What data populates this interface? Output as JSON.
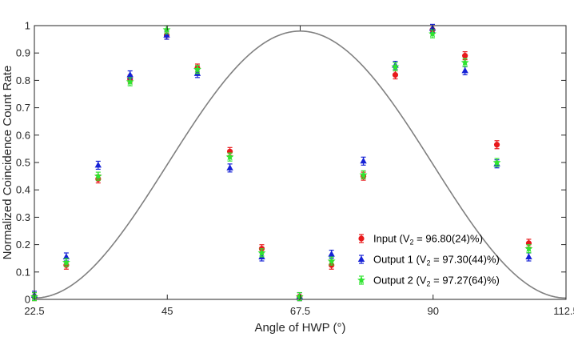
{
  "chart_data": {
    "type": "scatter",
    "xlabel": "Angle of HWP (°)",
    "ylabel": "Normalized Coincidence Count Rate",
    "xlim": [
      22.5,
      112.5
    ],
    "ylim": [
      0,
      1
    ],
    "xticks": [
      "22.5",
      "45",
      "67.5",
      "90",
      "112.5"
    ],
    "yticks": [
      "0",
      "0.1",
      "0.2",
      "0.3",
      "0.4",
      "0.5",
      "0.6",
      "0.7",
      "0.8",
      "0.9",
      "1"
    ],
    "grid": false,
    "legend_position": "right",
    "fit_curve": {
      "color": "#808080",
      "x_min": 22.5,
      "x_max": 112.5
    },
    "x": [
      22.5,
      27.9,
      33.3,
      38.7,
      44.9,
      50.1,
      55.6,
      61.0,
      67.4,
      72.8,
      78.2,
      83.6,
      89.9,
      95.4,
      100.8,
      106.2
    ],
    "series": [
      {
        "name": "Input (V",
        "name_sub": "2",
        "name_rest": " = 96.80(24)%)",
        "marker": "circle",
        "color": "#e8191b",
        "values": [
          0.01,
          0.125,
          0.44,
          0.805,
          0.965,
          0.845,
          0.54,
          0.185,
          0.01,
          0.125,
          0.45,
          0.82,
          0.985,
          0.89,
          0.565,
          0.205
        ]
      },
      {
        "name": "Output 1 (V",
        "name_sub": "2",
        "name_rest": " = 97.30(44)%)",
        "marker": "triangle",
        "color": "#1622d6",
        "values": [
          0.015,
          0.155,
          0.49,
          0.82,
          0.965,
          0.825,
          0.48,
          0.155,
          0.01,
          0.165,
          0.505,
          0.855,
          0.99,
          0.835,
          0.495,
          0.155
        ]
      },
      {
        "name": "Output 2 (V",
        "name_sub": "2",
        "name_rest": " = 97.27(64)%)",
        "marker": "star",
        "color": "#2fe42f",
        "values": [
          0.01,
          0.135,
          0.45,
          0.795,
          0.985,
          0.84,
          0.52,
          0.17,
          0.01,
          0.14,
          0.455,
          0.85,
          0.97,
          0.865,
          0.5,
          0.185
        ]
      }
    ]
  }
}
